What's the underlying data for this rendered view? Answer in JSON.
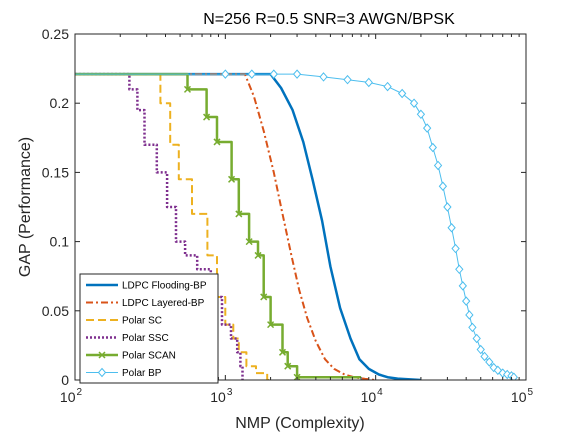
{
  "chart_data": {
    "type": "line",
    "title": "N=256 R=0.5 SNR=3 AWGN/BPSK",
    "xlabel": "NMP (Complexity)",
    "ylabel": "GAP (Performance)",
    "xscale": "log",
    "xlim": [
      100,
      100000
    ],
    "ylim": [
      0,
      0.25
    ],
    "grid": false,
    "legend_position": "bottom-left",
    "xticks": [
      {
        "value": 100,
        "base": "10",
        "exp": "2"
      },
      {
        "value": 1000,
        "base": "10",
        "exp": "3"
      },
      {
        "value": 10000,
        "base": "10",
        "exp": "4"
      },
      {
        "value": 100000,
        "base": "10",
        "exp": "5"
      }
    ],
    "yticks": [
      {
        "value": 0,
        "label": "0"
      },
      {
        "value": 0.05,
        "label": "0.05"
      },
      {
        "value": 0.1,
        "label": "0.1"
      },
      {
        "value": 0.15,
        "label": "0.15"
      },
      {
        "value": 0.2,
        "label": "0.2"
      },
      {
        "value": 0.25,
        "label": "0.25"
      }
    ],
    "series": [
      {
        "name": "LDPC Flooding-BP",
        "color": "#0072BD",
        "style": "solid",
        "width": 2.5,
        "marker": "none",
        "x": [
          100,
          2000,
          2350,
          2800,
          3300,
          3800,
          4400,
          5000,
          5800,
          6800,
          7800,
          9000,
          10500,
          12000,
          14000,
          17000,
          20000
        ],
        "y": [
          0.221,
          0.221,
          0.211,
          0.195,
          0.172,
          0.145,
          0.115,
          0.082,
          0.052,
          0.03,
          0.015,
          0.008,
          0.004,
          0.002,
          0.001,
          0.0004,
          0
        ]
      },
      {
        "name": "LDPC Layered-BP",
        "color": "#D95319",
        "style": "dashdot",
        "width": 2,
        "marker": "none",
        "x": [
          100,
          1350,
          1550,
          1800,
          2100,
          2400,
          2750,
          3100,
          3500,
          4000,
          4600,
          5300,
          6200,
          7200,
          8500,
          10000
        ],
        "y": [
          0.221,
          0.221,
          0.205,
          0.18,
          0.15,
          0.12,
          0.09,
          0.065,
          0.045,
          0.028,
          0.015,
          0.008,
          0.004,
          0.002,
          0.0008,
          0
        ]
      },
      {
        "name": "Polar SC",
        "color": "#EDB120",
        "style": "dashed",
        "width": 2,
        "marker": "none",
        "x": [
          100,
          370,
          370,
          430,
          430,
          490,
          490,
          600,
          600,
          760,
          760,
          880,
          880,
          1000,
          1000,
          1130,
          1130,
          1230,
          1230,
          1380,
          1380,
          1600,
          1600,
          1900,
          1900,
          2000
        ],
        "y": [
          0.221,
          0.221,
          0.2,
          0.2,
          0.17,
          0.17,
          0.145,
          0.145,
          0.12,
          0.12,
          0.09,
          0.09,
          0.06,
          0.06,
          0.04,
          0.04,
          0.03,
          0.03,
          0.02,
          0.02,
          0.01,
          0.01,
          0.005,
          0.005,
          0,
          0
        ]
      },
      {
        "name": "Polar SSC",
        "color": "#7E2F8E",
        "style": "dotted",
        "width": 2.5,
        "marker": "none",
        "x": [
          100,
          230,
          230,
          260,
          260,
          290,
          290,
          350,
          350,
          410,
          410,
          470,
          470,
          540,
          540,
          650,
          650,
          800,
          800,
          950,
          950,
          1090,
          1090,
          1200,
          1200,
          1260,
          1260,
          1300,
          1300,
          1350
        ],
        "y": [
          0.221,
          0.221,
          0.21,
          0.21,
          0.195,
          0.195,
          0.17,
          0.17,
          0.15,
          0.15,
          0.125,
          0.125,
          0.1,
          0.1,
          0.09,
          0.09,
          0.08,
          0.08,
          0.06,
          0.06,
          0.04,
          0.04,
          0.03,
          0.03,
          0.02,
          0.02,
          0.01,
          0.01,
          0,
          0
        ]
      },
      {
        "name": "Polar SCAN",
        "color": "#77AC30",
        "style": "solid",
        "width": 2.5,
        "marker": "x",
        "x": [
          100,
          560,
          560,
          750,
          750,
          880,
          880,
          1100,
          1100,
          1230,
          1230,
          1440,
          1440,
          1650,
          1650,
          1800,
          1800,
          2000,
          2000,
          2400,
          2400,
          2600,
          2600,
          3000,
          3000,
          8000
        ],
        "y": [
          0.221,
          0.221,
          0.21,
          0.21,
          0.19,
          0.19,
          0.172,
          0.172,
          0.145,
          0.145,
          0.12,
          0.12,
          0.1,
          0.1,
          0.09,
          0.09,
          0.06,
          0.06,
          0.04,
          0.04,
          0.02,
          0.02,
          0.01,
          0.01,
          0.002,
          0.002
        ]
      },
      {
        "name": "Polar BP",
        "color": "#4DBEEE",
        "style": "solid",
        "width": 1,
        "marker": "diamond",
        "x": [
          100,
          1000,
          1500,
          2100,
          3000,
          4500,
          6500,
          9000,
          12000,
          15000,
          18000,
          20000,
          22000,
          24000,
          26000,
          28000,
          30000,
          32000,
          34000,
          36000,
          38000,
          40000,
          42000,
          44000,
          47000,
          50000,
          53000,
          57000,
          61000,
          65000,
          70000,
          75000,
          80000,
          83000
        ],
        "y": [
          0.221,
          0.221,
          0.221,
          0.221,
          0.221,
          0.219,
          0.217,
          0.215,
          0.212,
          0.207,
          0.2,
          0.192,
          0.182,
          0.168,
          0.155,
          0.14,
          0.125,
          0.11,
          0.095,
          0.08,
          0.068,
          0.057,
          0.047,
          0.038,
          0.03,
          0.022,
          0.017,
          0.013,
          0.009,
          0.007,
          0.005,
          0.004,
          0.003,
          0.002
        ]
      }
    ]
  }
}
